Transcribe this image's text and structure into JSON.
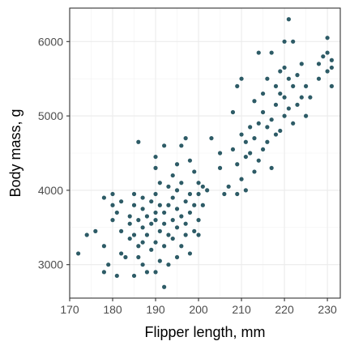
{
  "chart_data": {
    "type": "scatter",
    "title": "",
    "xlabel": "Flipper length, mm",
    "ylabel": "Body mass, g",
    "xlim": [
      170,
      233
    ],
    "ylim": [
      2550,
      6450
    ],
    "x_ticks": [
      170,
      180,
      190,
      200,
      210,
      220,
      230
    ],
    "y_ticks": [
      3000,
      4000,
      5000,
      6000
    ],
    "grid": true,
    "point_color": "#2d5b66",
    "points": [
      {
        "x": 172,
        "y": 3150
      },
      {
        "x": 174,
        "y": 3400
      },
      {
        "x": 176,
        "y": 3450
      },
      {
        "x": 178,
        "y": 2900
      },
      {
        "x": 178,
        "y": 3250
      },
      {
        "x": 178,
        "y": 3900
      },
      {
        "x": 179,
        "y": 3000
      },
      {
        "x": 180,
        "y": 3600
      },
      {
        "x": 180,
        "y": 3800
      },
      {
        "x": 180,
        "y": 3950
      },
      {
        "x": 181,
        "y": 2850
      },
      {
        "x": 181,
        "y": 3700
      },
      {
        "x": 182,
        "y": 3150
      },
      {
        "x": 182,
        "y": 3450
      },
      {
        "x": 182,
        "y": 3850
      },
      {
        "x": 183,
        "y": 3100
      },
      {
        "x": 184,
        "y": 3350
      },
      {
        "x": 184,
        "y": 3650
      },
      {
        "x": 184,
        "y": 3550
      },
      {
        "x": 185,
        "y": 2850
      },
      {
        "x": 185,
        "y": 3400
      },
      {
        "x": 185,
        "y": 3800
      },
      {
        "x": 185,
        "y": 3950
      },
      {
        "x": 186,
        "y": 3100
      },
      {
        "x": 186,
        "y": 3250
      },
      {
        "x": 186,
        "y": 3600
      },
      {
        "x": 186,
        "y": 4650
      },
      {
        "x": 187,
        "y": 3000
      },
      {
        "x": 187,
        "y": 3300
      },
      {
        "x": 187,
        "y": 3500
      },
      {
        "x": 187,
        "y": 3750
      },
      {
        "x": 187,
        "y": 3900
      },
      {
        "x": 188,
        "y": 2900
      },
      {
        "x": 188,
        "y": 3400
      },
      {
        "x": 188,
        "y": 3650
      },
      {
        "x": 189,
        "y": 3200
      },
      {
        "x": 189,
        "y": 3550
      },
      {
        "x": 189,
        "y": 3850
      },
      {
        "x": 190,
        "y": 2900
      },
      {
        "x": 190,
        "y": 3300
      },
      {
        "x": 190,
        "y": 3600
      },
      {
        "x": 190,
        "y": 3700
      },
      {
        "x": 190,
        "y": 3950
      },
      {
        "x": 190,
        "y": 4300
      },
      {
        "x": 190,
        "y": 4450
      },
      {
        "x": 191,
        "y": 3050
      },
      {
        "x": 191,
        "y": 3450
      },
      {
        "x": 191,
        "y": 3800
      },
      {
        "x": 191,
        "y": 4100
      },
      {
        "x": 192,
        "y": 2700
      },
      {
        "x": 192,
        "y": 3250
      },
      {
        "x": 192,
        "y": 3550
      },
      {
        "x": 192,
        "y": 3700
      },
      {
        "x": 192,
        "y": 4600
      },
      {
        "x": 193,
        "y": 3000
      },
      {
        "x": 193,
        "y": 3400
      },
      {
        "x": 193,
        "y": 3800
      },
      {
        "x": 193,
        "y": 4050
      },
      {
        "x": 194,
        "y": 3350
      },
      {
        "x": 194,
        "y": 3600
      },
      {
        "x": 194,
        "y": 3900
      },
      {
        "x": 194,
        "y": 4200
      },
      {
        "x": 195,
        "y": 3100
      },
      {
        "x": 195,
        "y": 3500
      },
      {
        "x": 195,
        "y": 3750
      },
      {
        "x": 195,
        "y": 4000
      },
      {
        "x": 195,
        "y": 4350
      },
      {
        "x": 196,
        "y": 3250
      },
      {
        "x": 196,
        "y": 3650
      },
      {
        "x": 196,
        "y": 4100
      },
      {
        "x": 196,
        "y": 4600
      },
      {
        "x": 197,
        "y": 3400
      },
      {
        "x": 197,
        "y": 3550
      },
      {
        "x": 197,
        "y": 3850
      },
      {
        "x": 197,
        "y": 4700
      },
      {
        "x": 198,
        "y": 3150
      },
      {
        "x": 198,
        "y": 3700
      },
      {
        "x": 198,
        "y": 3950
      },
      {
        "x": 198,
        "y": 4400
      },
      {
        "x": 199,
        "y": 3450
      },
      {
        "x": 199,
        "y": 3800
      },
      {
        "x": 199,
        "y": 4250
      },
      {
        "x": 200,
        "y": 3400
      },
      {
        "x": 200,
        "y": 3600
      },
      {
        "x": 200,
        "y": 3950
      },
      {
        "x": 200,
        "y": 4100
      },
      {
        "x": 201,
        "y": 3800
      },
      {
        "x": 201,
        "y": 4050
      },
      {
        "x": 202,
        "y": 4000
      },
      {
        "x": 203,
        "y": 4700
      },
      {
        "x": 205,
        "y": 4300
      },
      {
        "x": 205,
        "y": 4500
      },
      {
        "x": 206,
        "y": 3950
      },
      {
        "x": 207,
        "y": 4050
      },
      {
        "x": 208,
        "y": 5050
      },
      {
        "x": 208,
        "y": 4550
      },
      {
        "x": 209,
        "y": 3950
      },
      {
        "x": 209,
        "y": 4350
      },
      {
        "x": 209,
        "y": 5400
      },
      {
        "x": 210,
        "y": 4150
      },
      {
        "x": 210,
        "y": 4750
      },
      {
        "x": 210,
        "y": 5500
      },
      {
        "x": 211,
        "y": 4000
      },
      {
        "x": 211,
        "y": 4450
      },
      {
        "x": 211,
        "y": 4650
      },
      {
        "x": 212,
        "y": 4500
      },
      {
        "x": 212,
        "y": 4850
      },
      {
        "x": 213,
        "y": 4250
      },
      {
        "x": 213,
        "y": 4700
      },
      {
        "x": 213,
        "y": 5200
      },
      {
        "x": 214,
        "y": 4400
      },
      {
        "x": 214,
        "y": 4900
      },
      {
        "x": 214,
        "y": 5850
      },
      {
        "x": 215,
        "y": 4550
      },
      {
        "x": 215,
        "y": 5050
      },
      {
        "x": 215,
        "y": 5300
      },
      {
        "x": 216,
        "y": 4650
      },
      {
        "x": 216,
        "y": 4850
      },
      {
        "x": 216,
        "y": 5500
      },
      {
        "x": 217,
        "y": 4300
      },
      {
        "x": 217,
        "y": 4950
      },
      {
        "x": 217,
        "y": 5850
      },
      {
        "x": 218,
        "y": 4750
      },
      {
        "x": 218,
        "y": 5150
      },
      {
        "x": 218,
        "y": 5400
      },
      {
        "x": 219,
        "y": 4800
      },
      {
        "x": 219,
        "y": 5300
      },
      {
        "x": 219,
        "y": 5600
      },
      {
        "x": 220,
        "y": 5000
      },
      {
        "x": 220,
        "y": 5250
      },
      {
        "x": 220,
        "y": 5650
      },
      {
        "x": 220,
        "y": 6000
      },
      {
        "x": 221,
        "y": 5100
      },
      {
        "x": 221,
        "y": 5500
      },
      {
        "x": 221,
        "y": 6300
      },
      {
        "x": 222,
        "y": 4900
      },
      {
        "x": 222,
        "y": 5400
      },
      {
        "x": 222,
        "y": 6000
      },
      {
        "x": 223,
        "y": 5150
      },
      {
        "x": 223,
        "y": 5550
      },
      {
        "x": 224,
        "y": 5250
      },
      {
        "x": 224,
        "y": 5700
      },
      {
        "x": 225,
        "y": 5000
      },
      {
        "x": 225,
        "y": 5400
      },
      {
        "x": 226,
        "y": 5250
      },
      {
        "x": 228,
        "y": 5500
      },
      {
        "x": 228,
        "y": 5700
      },
      {
        "x": 229,
        "y": 5800
      },
      {
        "x": 230,
        "y": 5850
      },
      {
        "x": 230,
        "y": 6050
      },
      {
        "x": 230,
        "y": 5600
      },
      {
        "x": 231,
        "y": 5750
      },
      {
        "x": 231,
        "y": 5400
      },
      {
        "x": 231,
        "y": 5650
      }
    ]
  }
}
